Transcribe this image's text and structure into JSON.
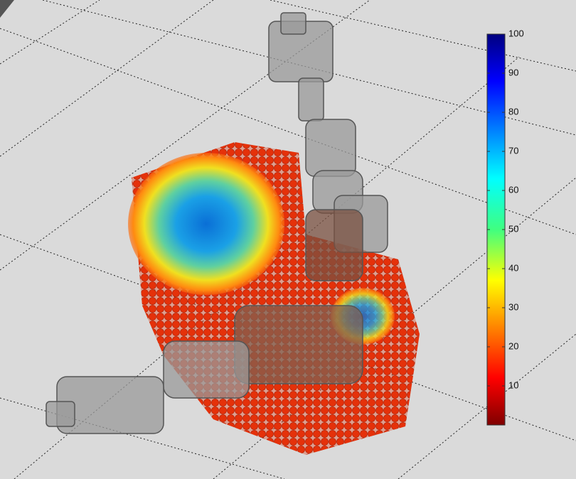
{
  "colorbar": {
    "lim": [
      0,
      100
    ],
    "ticks": [
      10,
      20,
      30,
      40,
      50,
      60,
      70,
      80,
      90,
      100
    ]
  }
}
